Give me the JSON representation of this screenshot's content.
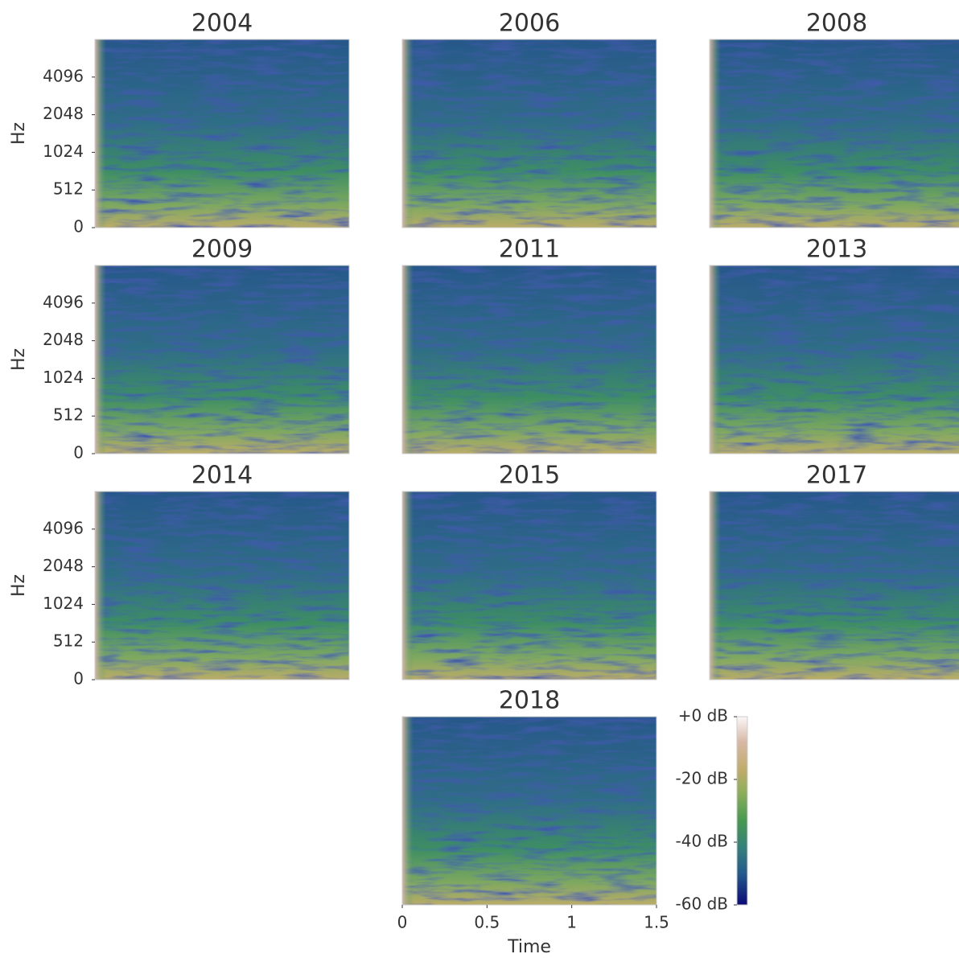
{
  "chart_data": [
    {
      "type": "heatmap",
      "title": "2004",
      "ylabel": "Hz",
      "yscale": "symlog",
      "linthresh": 512,
      "ylim": [
        0,
        8192
      ],
      "yticks": [
        0,
        512,
        1024,
        2048,
        4096
      ]
    },
    {
      "type": "heatmap",
      "title": "2006"
    },
    {
      "type": "heatmap",
      "title": "2008"
    },
    {
      "type": "heatmap",
      "title": "2009",
      "ylabel": "Hz",
      "yscale": "symlog",
      "linthresh": 512,
      "ylim": [
        0,
        8192
      ],
      "yticks": [
        0,
        512,
        1024,
        2048,
        4096
      ]
    },
    {
      "type": "heatmap",
      "title": "2011"
    },
    {
      "type": "heatmap",
      "title": "2013"
    },
    {
      "type": "heatmap",
      "title": "2014",
      "ylabel": "Hz",
      "yscale": "symlog",
      "linthresh": 512,
      "ylim": [
        0,
        8192
      ],
      "yticks": [
        0,
        512,
        1024,
        2048,
        4096
      ]
    },
    {
      "type": "heatmap",
      "title": "2015"
    },
    {
      "type": "heatmap",
      "title": "2017"
    },
    {
      "type": "heatmap",
      "title": "2018",
      "xlabel": "Time",
      "xlim": [
        0,
        1.5
      ],
      "xticks": [
        0,
        0.5,
        1,
        1.5
      ]
    },
    {
      "type": "colorbar",
      "clim": [
        -60,
        0
      ],
      "ticks": [
        {
          "value": 0,
          "label": "+0 dB"
        },
        {
          "value": -20,
          "label": "-20 dB"
        },
        {
          "value": -40,
          "label": "-40 dB"
        },
        {
          "value": -60,
          "label": "-60 dB"
        }
      ],
      "colorscale": [
        [
          -60,
          "#0b0b75"
        ],
        [
          -50,
          "#245a8c"
        ],
        [
          -42,
          "#347f7c"
        ],
        [
          -33,
          "#479a50"
        ],
        [
          -24,
          "#8fae5c"
        ],
        [
          -17,
          "#bfac6a"
        ],
        [
          -8,
          "#d8b8a6"
        ],
        [
          0,
          "#fbf7f8"
        ]
      ]
    }
  ]
}
